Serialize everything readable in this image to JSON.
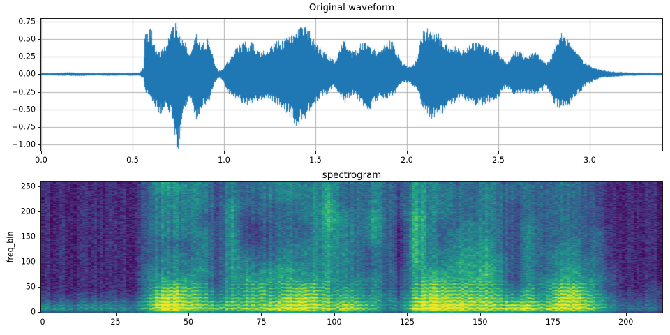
{
  "figure": {
    "background": "#ffffff"
  },
  "chart_data": [
    {
      "type": "line",
      "title": "Original waveform",
      "xlabel": "",
      "ylabel": "",
      "line_color": "#1f77b4",
      "grid": true,
      "grid_color": "#b0b0b0",
      "xlim": [
        0,
        3.397
      ],
      "ylim": [
        -1.085,
        0.785
      ],
      "xticks": [
        0.0,
        0.5,
        1.0,
        1.5,
        2.0,
        2.5,
        3.0
      ],
      "xtick_labels": [
        "0.0",
        "0.5",
        "1.0",
        "1.5",
        "2.0",
        "2.5",
        "3.0"
      ],
      "yticks": [
        0.75,
        0.5,
        0.25,
        0.0,
        -0.25,
        -0.5,
        -0.75,
        -1.0
      ],
      "ytick_labels": [
        "0.75",
        "0.50",
        "0.25",
        "0.00",
        "−0.25",
        "−0.50",
        "−0.75",
        "−1.00"
      ],
      "series_note": "audio amplitude envelope: upper/lower peak vs time (s)",
      "envelope": {
        "t": [
          0,
          0.05,
          0.1,
          0.15,
          0.2,
          0.25,
          0.3,
          0.35,
          0.4,
          0.45,
          0.5,
          0.54,
          0.56,
          0.57,
          0.585,
          0.6,
          0.615,
          0.63,
          0.65,
          0.67,
          0.69,
          0.71,
          0.73,
          0.745,
          0.76,
          0.775,
          0.79,
          0.805,
          0.82,
          0.835,
          0.85,
          0.865,
          0.88,
          0.895,
          0.91,
          0.925,
          0.94,
          0.955,
          0.97,
          0.985,
          1.0,
          1.015,
          1.03,
          1.045,
          1.06,
          1.075,
          1.09,
          1.105,
          1.12,
          1.135,
          1.15,
          1.165,
          1.18,
          1.2,
          1.22,
          1.24,
          1.26,
          1.28,
          1.3,
          1.32,
          1.34,
          1.36,
          1.38,
          1.4,
          1.42,
          1.44,
          1.46,
          1.48,
          1.5,
          1.52,
          1.54,
          1.56,
          1.58,
          1.6,
          1.62,
          1.64,
          1.66,
          1.68,
          1.7,
          1.72,
          1.74,
          1.76,
          1.78,
          1.8,
          1.82,
          1.84,
          1.86,
          1.88,
          1.9,
          1.92,
          1.94,
          1.96,
          1.98,
          2.0,
          2.02,
          2.04,
          2.06,
          2.08,
          2.1,
          2.12,
          2.14,
          2.16,
          2.18,
          2.2,
          2.22,
          2.24,
          2.26,
          2.28,
          2.3,
          2.32,
          2.34,
          2.36,
          2.38,
          2.4,
          2.42,
          2.44,
          2.46,
          2.48,
          2.5,
          2.52,
          2.54,
          2.56,
          2.58,
          2.6,
          2.62,
          2.64,
          2.66,
          2.68,
          2.7,
          2.72,
          2.74,
          2.76,
          2.78,
          2.8,
          2.82,
          2.84,
          2.86,
          2.88,
          2.9,
          2.92,
          2.94,
          2.96,
          2.98,
          3.0,
          3.02,
          3.04,
          3.06,
          3.08,
          3.1,
          3.15,
          3.2,
          3.25,
          3.3,
          3.35,
          3.4
        ],
        "upper": [
          0.015,
          0.015,
          0.02,
          0.025,
          0.02,
          0.02,
          0.015,
          0.02,
          0.02,
          0.015,
          0.02,
          0.02,
          0.1,
          0.62,
          0.5,
          0.65,
          0.4,
          0.32,
          0.3,
          0.36,
          0.46,
          0.6,
          0.66,
          0.62,
          0.55,
          0.48,
          0.4,
          0.26,
          0.32,
          0.46,
          0.52,
          0.48,
          0.4,
          0.43,
          0.46,
          0.4,
          0.26,
          0.1,
          0.05,
          0.05,
          0.09,
          0.16,
          0.21,
          0.26,
          0.31,
          0.36,
          0.38,
          0.4,
          0.42,
          0.38,
          0.42,
          0.38,
          0.34,
          0.3,
          0.32,
          0.34,
          0.37,
          0.44,
          0.46,
          0.44,
          0.47,
          0.5,
          0.53,
          0.58,
          0.64,
          0.67,
          0.6,
          0.48,
          0.42,
          0.36,
          0.3,
          0.28,
          0.22,
          0.18,
          0.24,
          0.38,
          0.44,
          0.36,
          0.3,
          0.32,
          0.38,
          0.44,
          0.4,
          0.36,
          0.33,
          0.31,
          0.33,
          0.4,
          0.45,
          0.42,
          0.34,
          0.22,
          0.14,
          0.11,
          0.12,
          0.14,
          0.24,
          0.52,
          0.6,
          0.58,
          0.62,
          0.58,
          0.5,
          0.44,
          0.4,
          0.37,
          0.38,
          0.34,
          0.32,
          0.33,
          0.36,
          0.4,
          0.41,
          0.42,
          0.38,
          0.35,
          0.33,
          0.35,
          0.3,
          0.22,
          0.16,
          0.2,
          0.28,
          0.32,
          0.3,
          0.26,
          0.24,
          0.27,
          0.29,
          0.27,
          0.22,
          0.14,
          0.2,
          0.3,
          0.42,
          0.52,
          0.56,
          0.48,
          0.38,
          0.3,
          0.26,
          0.2,
          0.15,
          0.12,
          0.09,
          0.07,
          0.06,
          0.05,
          0.04,
          0.03,
          0.025,
          0.02,
          0.02,
          0.015,
          0.015
        ],
        "lower": [
          -0.015,
          -0.015,
          -0.02,
          -0.02,
          -0.025,
          -0.02,
          -0.015,
          -0.02,
          -0.02,
          -0.015,
          -0.02,
          -0.02,
          -0.06,
          -0.22,
          -0.28,
          -0.32,
          -0.38,
          -0.45,
          -0.52,
          -0.46,
          -0.42,
          -0.55,
          -0.92,
          -1.0,
          -0.88,
          -0.62,
          -0.45,
          -0.3,
          -0.36,
          -0.46,
          -0.63,
          -0.55,
          -0.46,
          -0.4,
          -0.42,
          -0.34,
          -0.2,
          -0.08,
          -0.05,
          -0.06,
          -0.11,
          -0.21,
          -0.26,
          -0.29,
          -0.31,
          -0.33,
          -0.36,
          -0.38,
          -0.42,
          -0.4,
          -0.45,
          -0.4,
          -0.36,
          -0.33,
          -0.34,
          -0.33,
          -0.35,
          -0.38,
          -0.42,
          -0.45,
          -0.5,
          -0.55,
          -0.62,
          -0.68,
          -0.62,
          -0.66,
          -0.5,
          -0.42,
          -0.38,
          -0.33,
          -0.28,
          -0.26,
          -0.22,
          -0.18,
          -0.22,
          -0.32,
          -0.38,
          -0.32,
          -0.28,
          -0.3,
          -0.36,
          -0.4,
          -0.44,
          -0.48,
          -0.4,
          -0.33,
          -0.3,
          -0.31,
          -0.32,
          -0.3,
          -0.24,
          -0.16,
          -0.11,
          -0.11,
          -0.13,
          -0.16,
          -0.22,
          -0.4,
          -0.48,
          -0.55,
          -0.6,
          -0.62,
          -0.58,
          -0.5,
          -0.44,
          -0.4,
          -0.38,
          -0.35,
          -0.34,
          -0.36,
          -0.38,
          -0.41,
          -0.44,
          -0.42,
          -0.4,
          -0.38,
          -0.35,
          -0.39,
          -0.32,
          -0.24,
          -0.16,
          -0.2,
          -0.26,
          -0.28,
          -0.27,
          -0.25,
          -0.24,
          -0.26,
          -0.27,
          -0.26,
          -0.22,
          -0.15,
          -0.28,
          -0.36,
          -0.42,
          -0.45,
          -0.47,
          -0.42,
          -0.36,
          -0.3,
          -0.26,
          -0.2,
          -0.15,
          -0.12,
          -0.09,
          -0.07,
          -0.05,
          -0.04,
          -0.04,
          -0.03,
          -0.02,
          -0.02,
          -0.015,
          -0.015,
          -0.015
        ]
      }
    },
    {
      "type": "heatmap",
      "title": "spectrogram",
      "xlabel": "",
      "ylabel": "freq_bin",
      "xticks": [
        0,
        25,
        50,
        75,
        100,
        125,
        150,
        175,
        200
      ],
      "xtick_labels": [
        "0",
        "25",
        "50",
        "75",
        "100",
        "125",
        "150",
        "175",
        "200"
      ],
      "yticks": [
        0,
        50,
        100,
        150,
        200,
        250
      ],
      "ytick_labels": [
        "0",
        "50",
        "100",
        "150",
        "200",
        "250"
      ],
      "n_time_frames": 213,
      "n_freq_bins": 257,
      "colormap": "viridis",
      "colormap_stops": [
        "#440154",
        "#482475",
        "#414487",
        "#355f8d",
        "#2a788e",
        "#21918c",
        "#22a884",
        "#44bf70",
        "#7ad151",
        "#bddf26",
        "#fde725"
      ],
      "intensity_scale": [
        0,
        9
      ],
      "grid_note": "intensity matrix: 14 frequency bands (bottom→top, ~18 bins each) × 44 time columns (~4.8 frames each)",
      "intensity_rows_bottom_to_top": [
        [
          4,
          4,
          4,
          4,
          4,
          4,
          4,
          6,
          9,
          9,
          8,
          7,
          6,
          7,
          7,
          7,
          8,
          8,
          9,
          8,
          7,
          8,
          7,
          6,
          4,
          4,
          8,
          9,
          9,
          9,
          8,
          8,
          7,
          8,
          8,
          7,
          8,
          8,
          8,
          6,
          4,
          3,
          3,
          3
        ],
        [
          2,
          2,
          2,
          2,
          2,
          2,
          2,
          5,
          8,
          8,
          7,
          6,
          4,
          6,
          6,
          6,
          6,
          7,
          8,
          7,
          6,
          6,
          5,
          5,
          4,
          3,
          7,
          8,
          8,
          7,
          7,
          7,
          6,
          5,
          6,
          5,
          7,
          8,
          7,
          5,
          3,
          2,
          2,
          2
        ],
        [
          1,
          1,
          1,
          1,
          1,
          1,
          1,
          4,
          6,
          7,
          6,
          5,
          3,
          5,
          5,
          6,
          5,
          6,
          7,
          6,
          5,
          5,
          4,
          4,
          3,
          2,
          6,
          7,
          7,
          6,
          6,
          6,
          5,
          3,
          5,
          4,
          6,
          7,
          6,
          4,
          2,
          1,
          1,
          2
        ],
        [
          1,
          1,
          1,
          1,
          1,
          1,
          1,
          4,
          5,
          5,
          5,
          4,
          2,
          5,
          5,
          5,
          5,
          5,
          5,
          5,
          5,
          4,
          4,
          4,
          3,
          2,
          5,
          6,
          6,
          5,
          6,
          6,
          4,
          2,
          4,
          4,
          5,
          5,
          5,
          4,
          2,
          1,
          1,
          1
        ],
        [
          1,
          1,
          1,
          1,
          1,
          1,
          1,
          4,
          4,
          4,
          4,
          5,
          2,
          5,
          4,
          4,
          5,
          5,
          5,
          4,
          5,
          4,
          3,
          3,
          3,
          2,
          5,
          5,
          5,
          5,
          5,
          6,
          4,
          2,
          4,
          3,
          4,
          5,
          4,
          3,
          2,
          1,
          1,
          1
        ],
        [
          1,
          1,
          1,
          1,
          1,
          1,
          1,
          3,
          4,
          4,
          4,
          4,
          2,
          5,
          4,
          3,
          4,
          4,
          4,
          4,
          5,
          4,
          3,
          3,
          3,
          1,
          6,
          4,
          4,
          5,
          5,
          5,
          4,
          2,
          4,
          3,
          4,
          4,
          4,
          3,
          1,
          1,
          1,
          1
        ],
        [
          1,
          1,
          1,
          1,
          1,
          1,
          1,
          3,
          3,
          4,
          3,
          4,
          2,
          5,
          3,
          3,
          3,
          4,
          4,
          4,
          5,
          4,
          3,
          3,
          3,
          1,
          6,
          4,
          4,
          4,
          5,
          5,
          3,
          2,
          4,
          3,
          4,
          4,
          3,
          3,
          1,
          1,
          1,
          1
        ],
        [
          1,
          1,
          1,
          1,
          1,
          1,
          1,
          3,
          3,
          3,
          3,
          4,
          2,
          5,
          2,
          2,
          3,
          3,
          4,
          4,
          5,
          4,
          3,
          4,
          3,
          1,
          6,
          4,
          3,
          4,
          4,
          5,
          3,
          2,
          4,
          3,
          3,
          4,
          3,
          3,
          1,
          1,
          1,
          1
        ],
        [
          1,
          1,
          1,
          1,
          1,
          1,
          1,
          3,
          4,
          4,
          4,
          4,
          2,
          5,
          2,
          2,
          3,
          3,
          3,
          4,
          5,
          4,
          3,
          5,
          3,
          1,
          6,
          4,
          3,
          4,
          4,
          4,
          3,
          2,
          4,
          3,
          3,
          3,
          3,
          3,
          1,
          1,
          1,
          1
        ],
        [
          1,
          1,
          1,
          1,
          1,
          1,
          1,
          3,
          4,
          4,
          4,
          3,
          2,
          5,
          2,
          2,
          3,
          3,
          3,
          4,
          6,
          4,
          3,
          5,
          3,
          1,
          6,
          4,
          3,
          3,
          4,
          4,
          3,
          2,
          4,
          3,
          3,
          3,
          3,
          2,
          1,
          1,
          1,
          1
        ],
        [
          1,
          1,
          1,
          1,
          1,
          1,
          1,
          3,
          4,
          4,
          4,
          3,
          2,
          5,
          2,
          3,
          3,
          3,
          4,
          4,
          6,
          4,
          3,
          5,
          3,
          2,
          6,
          4,
          4,
          3,
          3,
          4,
          3,
          2,
          3,
          3,
          3,
          3,
          3,
          2,
          1,
          1,
          1,
          1
        ],
        [
          1,
          1,
          1,
          1,
          1,
          1,
          1,
          3,
          4,
          4,
          4,
          4,
          2,
          5,
          3,
          3,
          3,
          3,
          4,
          4,
          6,
          3,
          3,
          4,
          3,
          2,
          5,
          4,
          4,
          3,
          3,
          4,
          3,
          2,
          3,
          3,
          3,
          3,
          3,
          2,
          1,
          1,
          1,
          1
        ],
        [
          1,
          1,
          1,
          1,
          1,
          1,
          1,
          3,
          4,
          4,
          4,
          4,
          2,
          4,
          3,
          3,
          4,
          4,
          4,
          4,
          5,
          3,
          3,
          4,
          3,
          2,
          5,
          4,
          4,
          3,
          3,
          4,
          3,
          3,
          3,
          3,
          3,
          3,
          3,
          2,
          1,
          1,
          1,
          1
        ],
        [
          1,
          1,
          1,
          1,
          1,
          1,
          1,
          3,
          5,
          5,
          4,
          4,
          2,
          4,
          3,
          3,
          4,
          4,
          4,
          4,
          5,
          3,
          3,
          4,
          3,
          2,
          5,
          4,
          4,
          3,
          3,
          4,
          3,
          3,
          3,
          3,
          3,
          3,
          3,
          2,
          1,
          1,
          1,
          1
        ]
      ]
    }
  ]
}
